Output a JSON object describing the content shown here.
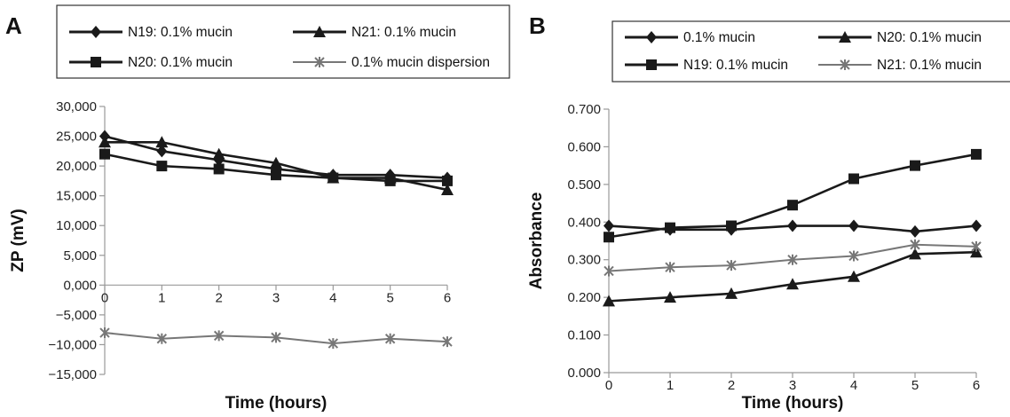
{
  "chart_data": [
    {
      "panel": "A",
      "type": "line",
      "xlabel": "Time (hours)",
      "ylabel": "ZP (mV)",
      "x": [
        0,
        1,
        2,
        3,
        4,
        5,
        6
      ],
      "xticks": [
        "0",
        "1",
        "2",
        "3",
        "4",
        "5",
        "6"
      ],
      "ylim": [
        -15000,
        30000
      ],
      "yticks": [
        30000,
        25000,
        20000,
        15000,
        10000,
        5000,
        0,
        -5000,
        -10000,
        -15000
      ],
      "ytick_labels": [
        "30,000",
        "25,000",
        "20,000",
        "15,000",
        "10,000",
        "5,000",
        "0,000",
        "−5,000",
        "−10,000",
        "−15,000"
      ],
      "legend_position": "top",
      "series": [
        {
          "name": "N19: 0.1% mucin",
          "marker": "diamond",
          "color": "#1a1a1a",
          "values": [
            25000,
            22500,
            21000,
            19500,
            18500,
            18500,
            18000
          ]
        },
        {
          "name": "N21: 0.1% mucin",
          "marker": "triangle",
          "color": "#1a1a1a",
          "values": [
            24000,
            24000,
            22000,
            20500,
            18000,
            18000,
            16000
          ]
        },
        {
          "name": "N20: 0.1% mucin",
          "marker": "square",
          "color": "#1a1a1a",
          "values": [
            22000,
            20000,
            19500,
            18500,
            18000,
            17500,
            17500
          ]
        },
        {
          "name": "0.1% mucin dispersion",
          "marker": "x",
          "color": "#777777",
          "values": [
            -8000,
            -9000,
            -8500,
            -8800,
            -9800,
            -9000,
            -9500
          ]
        }
      ]
    },
    {
      "panel": "B",
      "type": "line",
      "xlabel": "Time (hours)",
      "ylabel": "Absorbance",
      "x": [
        0,
        1,
        2,
        3,
        4,
        5,
        6
      ],
      "xticks": [
        "0",
        "1",
        "2",
        "3",
        "4",
        "5",
        "6"
      ],
      "ylim": [
        0,
        0.7
      ],
      "yticks": [
        0.7,
        0.6,
        0.5,
        0.4,
        0.3,
        0.2,
        0.1,
        0
      ],
      "ytick_labels": [
        "0.700",
        "0.600",
        "0.500",
        "0.400",
        "0.300",
        "0.200",
        "0.100",
        "0.000"
      ],
      "legend_position": "top",
      "series": [
        {
          "name": "0.1% mucin",
          "marker": "diamond",
          "color": "#1a1a1a",
          "values": [
            0.39,
            0.38,
            0.38,
            0.39,
            0.39,
            0.375,
            0.39
          ]
        },
        {
          "name": "N20: 0.1% mucin",
          "marker": "triangle",
          "color": "#1a1a1a",
          "values": [
            0.19,
            0.2,
            0.21,
            0.235,
            0.255,
            0.315,
            0.32
          ]
        },
        {
          "name": "N19: 0.1% mucin",
          "marker": "square",
          "color": "#1a1a1a",
          "values": [
            0.36,
            0.385,
            0.39,
            0.445,
            0.515,
            0.55,
            0.58
          ]
        },
        {
          "name": "N21: 0.1% mucin",
          "marker": "x",
          "color": "#777777",
          "values": [
            0.27,
            0.28,
            0.285,
            0.3,
            0.31,
            0.34,
            0.335
          ]
        }
      ]
    }
  ]
}
